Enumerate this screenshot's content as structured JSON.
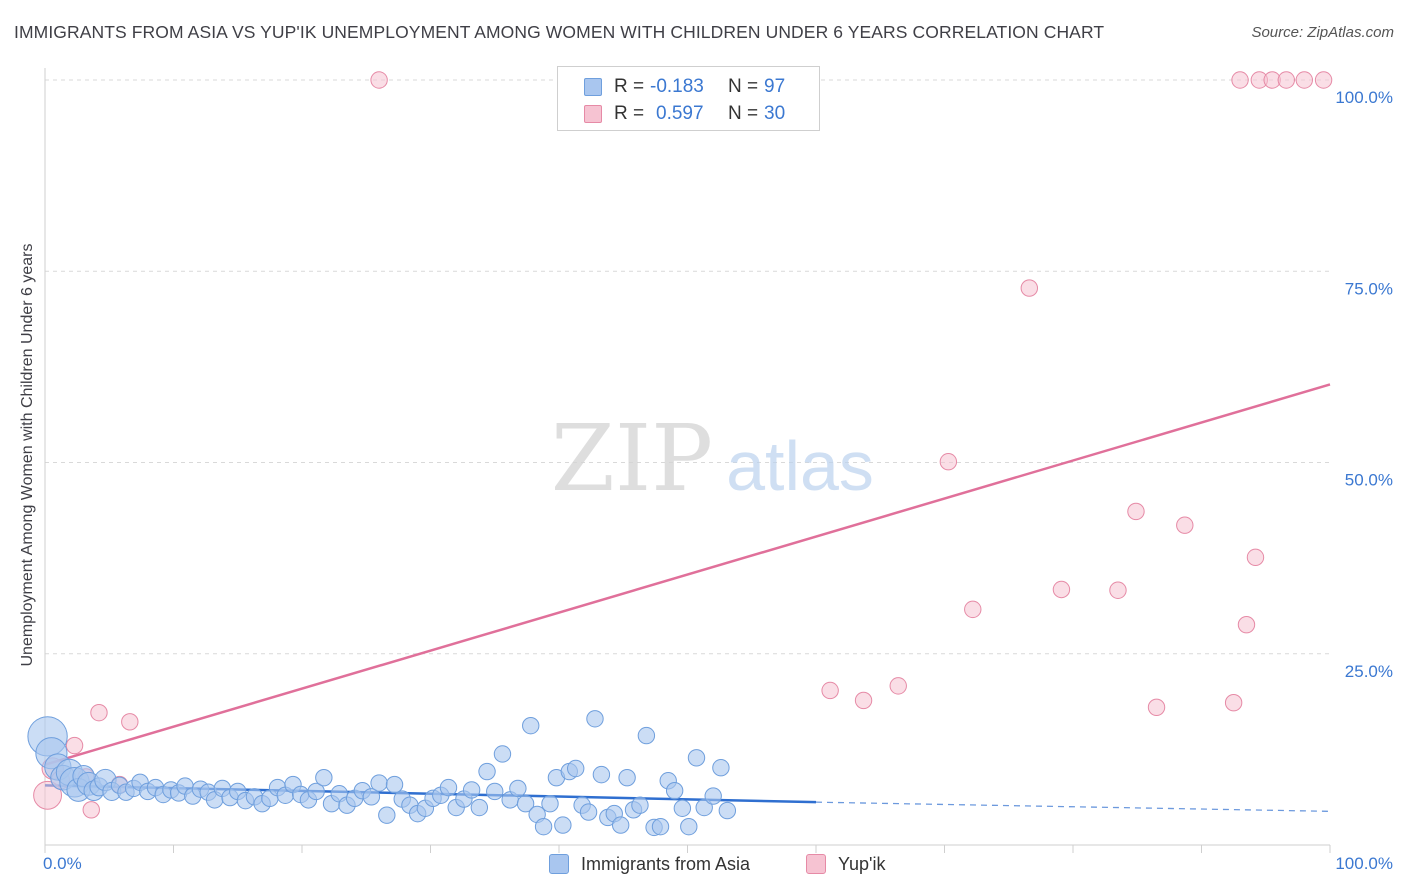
{
  "title": "IMMIGRANTS FROM ASIA VS YUP'IK UNEMPLOYMENT AMONG WOMEN WITH CHILDREN UNDER 6 YEARS CORRELATION CHART",
  "source": "Source: ZipAtlas.com",
  "watermark": {
    "zip": "ZIP",
    "atlas": "atlas"
  },
  "legend": {
    "rows": [
      {
        "r_label": "R =",
        "r_value": "-0.183",
        "n_label": "N =",
        "n_value": "97"
      },
      {
        "r_label": "R =",
        "r_value": "0.597",
        "n_label": "N =",
        "n_value": "30"
      }
    ]
  },
  "bottom_legend": {
    "asia": "Immigrants from Asia",
    "yupik": "Yup'ik"
  },
  "colors": {
    "asia_fill": "#a9c6ef",
    "asia_stroke": "#6f9fdd",
    "asia_line": "#2f6fd0",
    "yupik_fill": "#f6c3d2",
    "yupik_stroke": "#e68aa6",
    "yupik_line": "#e0709a",
    "grid": "#d9d9d9",
    "tick_label": "#3b78d1"
  },
  "chart_data": {
    "type": "scatter",
    "title": "IMMIGRANTS FROM ASIA VS YUP'IK UNEMPLOYMENT AMONG WOMEN WITH CHILDREN UNDER 6 YEARS CORRELATION CHART",
    "xlabel": "",
    "ylabel": "Unemployment Among Women with Children Under 6 years",
    "xlim": [
      0,
      100
    ],
    "ylim": [
      0,
      100
    ],
    "x_tick_labels": [
      "0.0%",
      "100.0%"
    ],
    "y_tick_labels": [
      {
        "value": 25,
        "label": "25.0%"
      },
      {
        "value": 50,
        "label": "50.0%"
      },
      {
        "value": 75,
        "label": "75.0%"
      },
      {
        "value": 100,
        "label": "100.0%"
      }
    ],
    "series": [
      {
        "name": "Immigrants from Asia",
        "color": "#a9c6ef",
        "r": -0.183,
        "n": 97,
        "trend": {
          "x0": 0,
          "y0": 7.8,
          "x1": 60,
          "y1": 5.6,
          "dashed_to_x": 100,
          "dashed_y1": 4.4
        },
        "points": [
          [
            0.2,
            14.2,
            2.4
          ],
          [
            0.5,
            12.0,
            1.9
          ],
          [
            1.0,
            10.2,
            1.6
          ],
          [
            1.4,
            8.8,
            1.5
          ],
          [
            1.9,
            9.5,
            1.6
          ],
          [
            2.3,
            8.2,
            1.8
          ],
          [
            2.6,
            7.2,
            1.4
          ],
          [
            3.0,
            9.0,
            1.3
          ],
          [
            3.4,
            8.0,
            1.4
          ],
          [
            3.8,
            7.1,
            1.2
          ],
          [
            4.2,
            7.6,
            1.1
          ],
          [
            4.7,
            8.5,
            1.3
          ],
          [
            5.2,
            7.0,
            1.1
          ],
          [
            5.8,
            7.8,
            1.0
          ],
          [
            6.3,
            6.9,
            1.0
          ],
          [
            6.9,
            7.4,
            1.0
          ],
          [
            7.4,
            8.2,
            1.0
          ],
          [
            8.0,
            7.0,
            1.0
          ],
          [
            8.6,
            7.5,
            1.0
          ],
          [
            9.2,
            6.6,
            1.0
          ],
          [
            9.8,
            7.2,
            1.0
          ],
          [
            10.4,
            6.8,
            1.0
          ],
          [
            10.9,
            7.7,
            1.0
          ],
          [
            11.5,
            6.4,
            1.0
          ],
          [
            12.1,
            7.3,
            1.0
          ],
          [
            12.7,
            6.9,
            1.0
          ],
          [
            13.2,
            5.9,
            1.0
          ],
          [
            13.8,
            7.4,
            1.0
          ],
          [
            14.4,
            6.2,
            1.0
          ],
          [
            15.0,
            7.0,
            1.0
          ],
          [
            15.6,
            5.8,
            1.0
          ],
          [
            16.3,
            6.3,
            1.0
          ],
          [
            16.9,
            5.4,
            1.0
          ],
          [
            17.5,
            6.1,
            1.0
          ],
          [
            18.1,
            7.5,
            1.0
          ],
          [
            18.7,
            6.5,
            1.0
          ],
          [
            19.3,
            7.9,
            1.0
          ],
          [
            19.9,
            6.6,
            1.0
          ],
          [
            20.5,
            5.9,
            1.0
          ],
          [
            21.1,
            7.0,
            1.0
          ],
          [
            21.7,
            8.8,
            1.0
          ],
          [
            22.3,
            5.4,
            1.0
          ],
          [
            22.9,
            6.7,
            1.0
          ],
          [
            23.5,
            5.2,
            1.0
          ],
          [
            24.1,
            6.1,
            1.0
          ],
          [
            24.7,
            7.1,
            1.0
          ],
          [
            25.4,
            6.3,
            1.0
          ],
          [
            26.0,
            8.1,
            1.0
          ],
          [
            26.6,
            3.9,
            1.0
          ],
          [
            27.2,
            7.9,
            1.0
          ],
          [
            27.8,
            6.0,
            1.0
          ],
          [
            28.4,
            5.2,
            1.0
          ],
          [
            29.0,
            4.1,
            1.0
          ],
          [
            29.6,
            4.8,
            1.0
          ],
          [
            30.2,
            6.1,
            1.0
          ],
          [
            30.8,
            6.5,
            1.0
          ],
          [
            31.4,
            7.5,
            1.0
          ],
          [
            32.0,
            4.9,
            1.0
          ],
          [
            32.6,
            6.0,
            1.0
          ],
          [
            33.2,
            7.2,
            1.0
          ],
          [
            33.8,
            4.9,
            1.0
          ],
          [
            34.4,
            9.6,
            1.0
          ],
          [
            35.0,
            7.0,
            1.0
          ],
          [
            35.6,
            11.9,
            1.0
          ],
          [
            36.2,
            5.9,
            1.0
          ],
          [
            36.8,
            7.4,
            1.0
          ],
          [
            37.4,
            5.4,
            1.0
          ],
          [
            37.8,
            15.6,
            1.0
          ],
          [
            38.3,
            4.0,
            1.0
          ],
          [
            38.8,
            2.4,
            1.0
          ],
          [
            39.3,
            5.4,
            1.0
          ],
          [
            39.8,
            8.8,
            1.0
          ],
          [
            40.3,
            2.6,
            1.0
          ],
          [
            40.8,
            9.6,
            1.0
          ],
          [
            41.3,
            10.0,
            1.0
          ],
          [
            41.8,
            5.2,
            1.0
          ],
          [
            42.3,
            4.3,
            1.0
          ],
          [
            42.8,
            16.5,
            1.0
          ],
          [
            43.3,
            9.2,
            1.0
          ],
          [
            43.8,
            3.6,
            1.0
          ],
          [
            44.3,
            4.1,
            1.0
          ],
          [
            44.8,
            2.6,
            1.0
          ],
          [
            45.3,
            8.8,
            1.0
          ],
          [
            45.8,
            4.6,
            1.0
          ],
          [
            46.3,
            5.2,
            1.0
          ],
          [
            46.8,
            14.3,
            1.0
          ],
          [
            47.4,
            2.3,
            1.0
          ],
          [
            47.9,
            2.4,
            1.0
          ],
          [
            48.5,
            8.4,
            1.0
          ],
          [
            49.0,
            7.1,
            1.0
          ],
          [
            49.6,
            4.8,
            1.0
          ],
          [
            50.1,
            2.4,
            1.0
          ],
          [
            50.7,
            11.4,
            1.0
          ],
          [
            51.3,
            4.9,
            1.0
          ],
          [
            52.0,
            6.4,
            1.0
          ],
          [
            52.6,
            10.1,
            1.0
          ],
          [
            53.1,
            4.5,
            1.0
          ]
        ]
      },
      {
        "name": "Yup'ik",
        "color": "#f6c3d2",
        "r": 0.597,
        "n": 30,
        "trend": {
          "x0": 0,
          "y0": 10.5,
          "x1": 100,
          "y1": 60.2
        },
        "points": [
          [
            0.2,
            6.5,
            1.7
          ],
          [
            0.6,
            10.0,
            1.3
          ],
          [
            1.2,
            8.5,
            1.1
          ],
          [
            2.3,
            13.0,
            1.0
          ],
          [
            3.2,
            8.9,
            1.0
          ],
          [
            3.6,
            4.6,
            1.0
          ],
          [
            4.2,
            17.3,
            1.0
          ],
          [
            5.8,
            7.9,
            1.0
          ],
          [
            6.6,
            16.1,
            1.0
          ],
          [
            26.0,
            100.0,
            1.0
          ],
          [
            61.1,
            20.2,
            1.0
          ],
          [
            63.7,
            18.9,
            1.0
          ],
          [
            66.4,
            20.8,
            1.0
          ],
          [
            70.3,
            50.1,
            1.0
          ],
          [
            72.2,
            30.8,
            1.0
          ],
          [
            76.6,
            72.8,
            1.0
          ],
          [
            79.1,
            33.4,
            1.0
          ],
          [
            83.5,
            33.3,
            1.0
          ],
          [
            84.9,
            43.6,
            1.0
          ],
          [
            86.5,
            18.0,
            1.0
          ],
          [
            88.7,
            41.8,
            1.0
          ],
          [
            92.5,
            18.6,
            1.0
          ],
          [
            93.0,
            100.0,
            1.0
          ],
          [
            93.5,
            28.8,
            1.0
          ],
          [
            94.2,
            37.6,
            1.0
          ],
          [
            94.5,
            100.0,
            1.0
          ],
          [
            95.5,
            100.0,
            1.0
          ],
          [
            96.6,
            100.0,
            1.0
          ],
          [
            98.0,
            100.0,
            1.0
          ],
          [
            99.5,
            100.0,
            1.0
          ]
        ]
      }
    ]
  }
}
